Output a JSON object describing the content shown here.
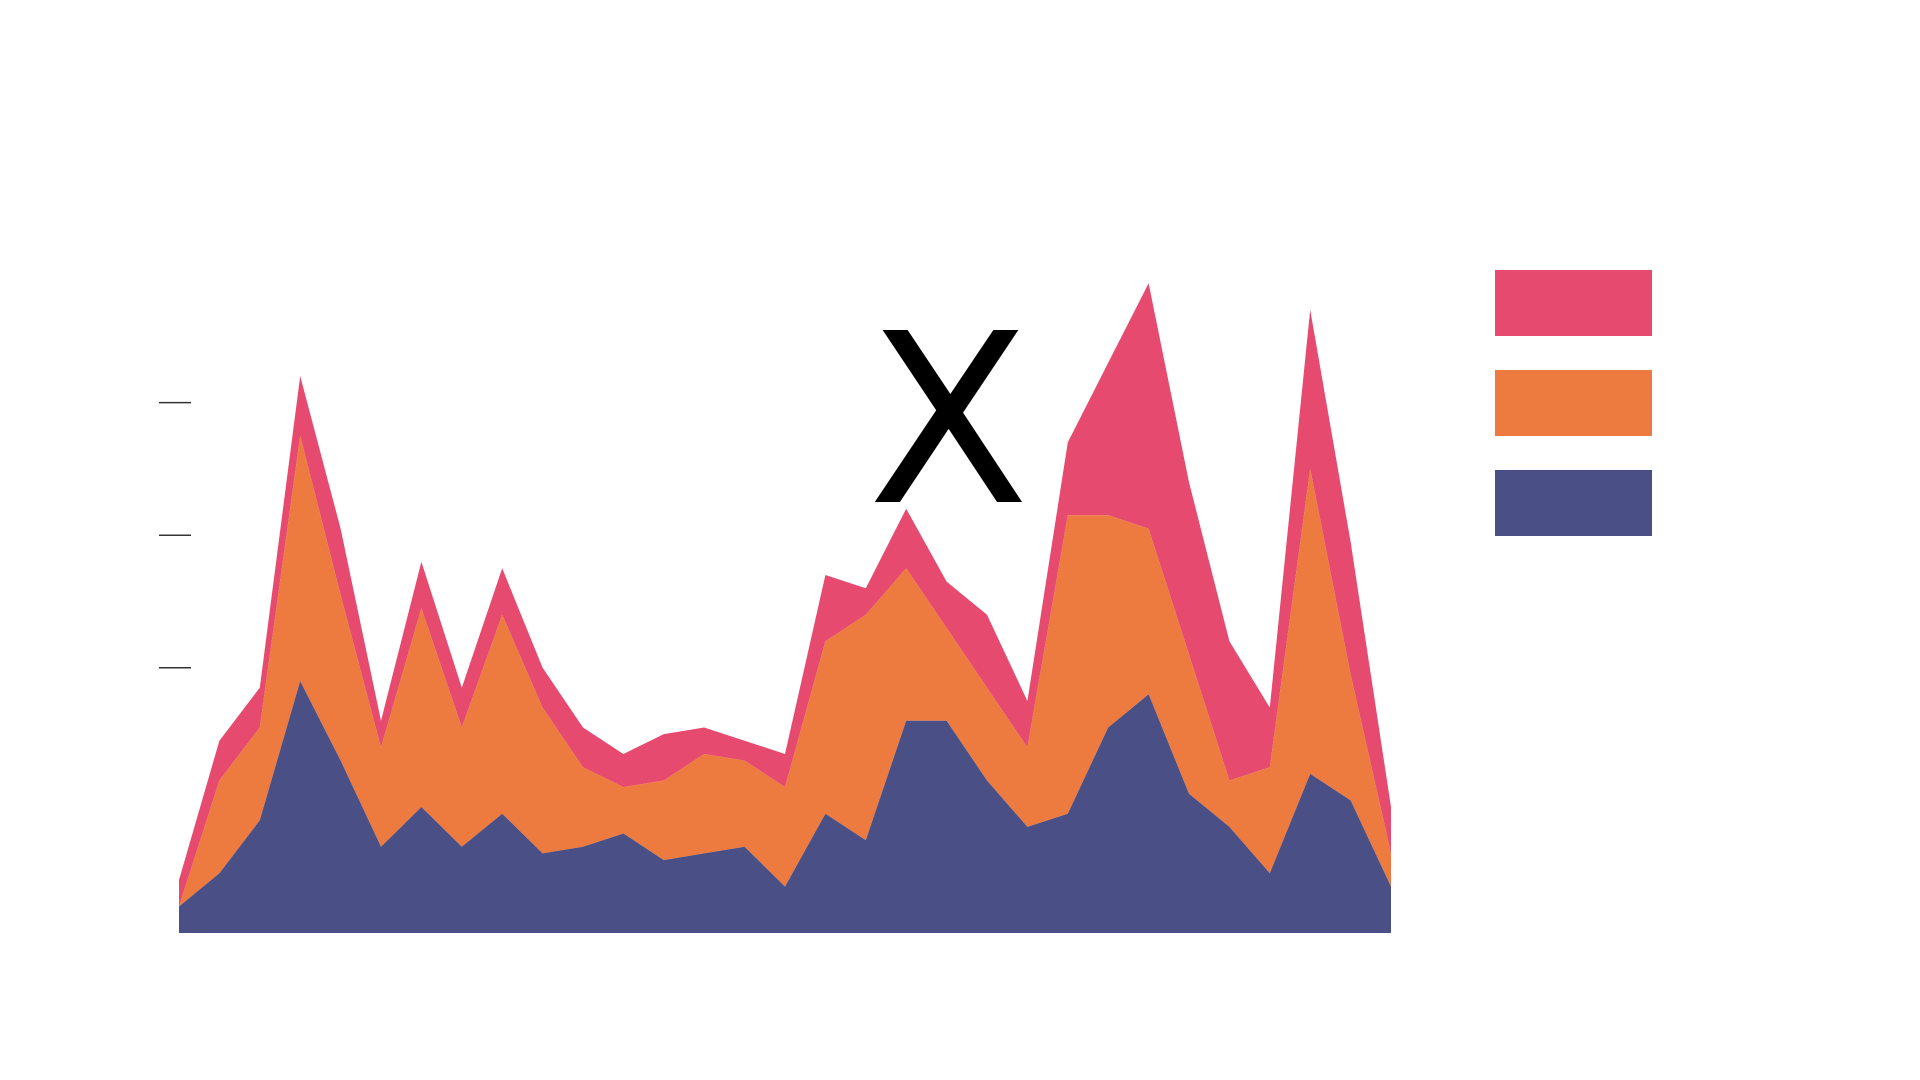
{
  "chart_data": {
    "type": "area",
    "stacked": true,
    "title": "",
    "xlabel": "",
    "ylabel": "",
    "x": [
      0,
      1,
      2,
      3,
      4,
      5,
      6,
      7,
      8,
      9,
      10,
      11,
      12,
      13,
      14,
      15,
      16,
      17,
      18,
      19,
      20,
      21,
      22,
      23,
      24,
      25,
      26,
      27,
      28,
      29,
      30
    ],
    "ylim": [
      0,
      10
    ],
    "y_ticks": [
      4,
      6,
      8
    ],
    "grid": false,
    "legend_position": "right",
    "series": [
      {
        "color": "#4a4f85",
        "values": [
          0.4,
          0.9,
          1.7,
          3.8,
          2.6,
          1.3,
          1.9,
          1.3,
          1.8,
          1.2,
          1.3,
          1.5,
          1.1,
          1.2,
          1.3,
          0.7,
          1.8,
          1.4,
          3.2,
          3.2,
          2.3,
          1.6,
          1.8,
          3.1,
          3.6,
          2.1,
          1.6,
          0.9,
          2.4,
          2.0,
          0.7
        ]
      },
      {
        "color": "#ed7b40",
        "values": [
          0.0,
          1.4,
          1.4,
          3.7,
          2.5,
          1.5,
          3.0,
          1.8,
          3.0,
          2.2,
          1.2,
          0.7,
          1.2,
          1.5,
          1.3,
          1.5,
          2.6,
          3.4,
          2.3,
          1.4,
          1.4,
          1.2,
          4.5,
          3.2,
          2.5,
          2.1,
          0.7,
          1.6,
          4.6,
          1.9,
          0.5
        ]
      },
      {
        "color": "#e64a6f",
        "values": [
          0.4,
          0.6,
          0.6,
          0.9,
          1.0,
          0.4,
          0.7,
          0.6,
          0.7,
          0.6,
          0.6,
          0.5,
          0.7,
          0.4,
          0.3,
          0.5,
          1.0,
          0.4,
          0.9,
          0.7,
          1.1,
          0.7,
          1.1,
          2.3,
          3.7,
          2.6,
          2.1,
          0.9,
          2.4,
          2.0,
          0.7
        ]
      }
    ],
    "annotations": [
      {
        "text": "X",
        "x": 19,
        "y": 6.5
      }
    ]
  }
}
